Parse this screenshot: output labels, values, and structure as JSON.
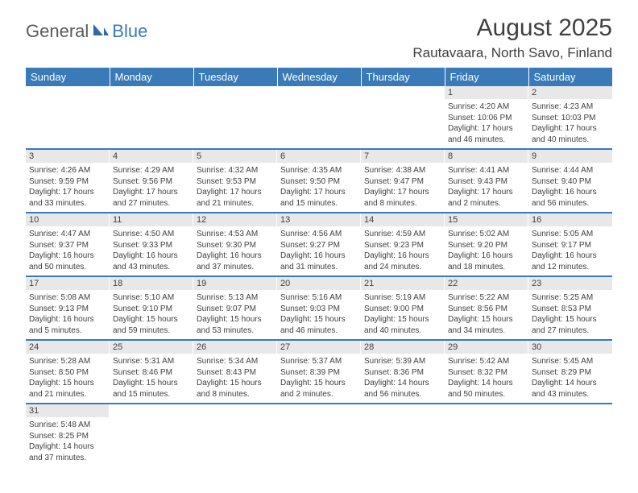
{
  "logo": {
    "text1": "General",
    "text2": "Blue",
    "color1": "#5a5a5a",
    "color2": "#3a7ab8"
  },
  "title": "August 2025",
  "location": "Rautavaara, North Savo, Finland",
  "header_bg": "#3a7ab8",
  "daynum_bg": "#e8e8e8",
  "text_color": "#404040",
  "border_color": "#3a7ab8",
  "weekdays": [
    "Sunday",
    "Monday",
    "Tuesday",
    "Wednesday",
    "Thursday",
    "Friday",
    "Saturday"
  ],
  "weeks": [
    [
      {
        "n": "",
        "sr": "",
        "ss": "",
        "dl": ""
      },
      {
        "n": "",
        "sr": "",
        "ss": "",
        "dl": ""
      },
      {
        "n": "",
        "sr": "",
        "ss": "",
        "dl": ""
      },
      {
        "n": "",
        "sr": "",
        "ss": "",
        "dl": ""
      },
      {
        "n": "",
        "sr": "",
        "ss": "",
        "dl": ""
      },
      {
        "n": "1",
        "sr": "Sunrise: 4:20 AM",
        "ss": "Sunset: 10:06 PM",
        "dl": "Daylight: 17 hours and 46 minutes."
      },
      {
        "n": "2",
        "sr": "Sunrise: 4:23 AM",
        "ss": "Sunset: 10:03 PM",
        "dl": "Daylight: 17 hours and 40 minutes."
      }
    ],
    [
      {
        "n": "3",
        "sr": "Sunrise: 4:26 AM",
        "ss": "Sunset: 9:59 PM",
        "dl": "Daylight: 17 hours and 33 minutes."
      },
      {
        "n": "4",
        "sr": "Sunrise: 4:29 AM",
        "ss": "Sunset: 9:56 PM",
        "dl": "Daylight: 17 hours and 27 minutes."
      },
      {
        "n": "5",
        "sr": "Sunrise: 4:32 AM",
        "ss": "Sunset: 9:53 PM",
        "dl": "Daylight: 17 hours and 21 minutes."
      },
      {
        "n": "6",
        "sr": "Sunrise: 4:35 AM",
        "ss": "Sunset: 9:50 PM",
        "dl": "Daylight: 17 hours and 15 minutes."
      },
      {
        "n": "7",
        "sr": "Sunrise: 4:38 AM",
        "ss": "Sunset: 9:47 PM",
        "dl": "Daylight: 17 hours and 8 minutes."
      },
      {
        "n": "8",
        "sr": "Sunrise: 4:41 AM",
        "ss": "Sunset: 9:43 PM",
        "dl": "Daylight: 17 hours and 2 minutes."
      },
      {
        "n": "9",
        "sr": "Sunrise: 4:44 AM",
        "ss": "Sunset: 9:40 PM",
        "dl": "Daylight: 16 hours and 56 minutes."
      }
    ],
    [
      {
        "n": "10",
        "sr": "Sunrise: 4:47 AM",
        "ss": "Sunset: 9:37 PM",
        "dl": "Daylight: 16 hours and 50 minutes."
      },
      {
        "n": "11",
        "sr": "Sunrise: 4:50 AM",
        "ss": "Sunset: 9:33 PM",
        "dl": "Daylight: 16 hours and 43 minutes."
      },
      {
        "n": "12",
        "sr": "Sunrise: 4:53 AM",
        "ss": "Sunset: 9:30 PM",
        "dl": "Daylight: 16 hours and 37 minutes."
      },
      {
        "n": "13",
        "sr": "Sunrise: 4:56 AM",
        "ss": "Sunset: 9:27 PM",
        "dl": "Daylight: 16 hours and 31 minutes."
      },
      {
        "n": "14",
        "sr": "Sunrise: 4:59 AM",
        "ss": "Sunset: 9:23 PM",
        "dl": "Daylight: 16 hours and 24 minutes."
      },
      {
        "n": "15",
        "sr": "Sunrise: 5:02 AM",
        "ss": "Sunset: 9:20 PM",
        "dl": "Daylight: 16 hours and 18 minutes."
      },
      {
        "n": "16",
        "sr": "Sunrise: 5:05 AM",
        "ss": "Sunset: 9:17 PM",
        "dl": "Daylight: 16 hours and 12 minutes."
      }
    ],
    [
      {
        "n": "17",
        "sr": "Sunrise: 5:08 AM",
        "ss": "Sunset: 9:13 PM",
        "dl": "Daylight: 16 hours and 5 minutes."
      },
      {
        "n": "18",
        "sr": "Sunrise: 5:10 AM",
        "ss": "Sunset: 9:10 PM",
        "dl": "Daylight: 15 hours and 59 minutes."
      },
      {
        "n": "19",
        "sr": "Sunrise: 5:13 AM",
        "ss": "Sunset: 9:07 PM",
        "dl": "Daylight: 15 hours and 53 minutes."
      },
      {
        "n": "20",
        "sr": "Sunrise: 5:16 AM",
        "ss": "Sunset: 9:03 PM",
        "dl": "Daylight: 15 hours and 46 minutes."
      },
      {
        "n": "21",
        "sr": "Sunrise: 5:19 AM",
        "ss": "Sunset: 9:00 PM",
        "dl": "Daylight: 15 hours and 40 minutes."
      },
      {
        "n": "22",
        "sr": "Sunrise: 5:22 AM",
        "ss": "Sunset: 8:56 PM",
        "dl": "Daylight: 15 hours and 34 minutes."
      },
      {
        "n": "23",
        "sr": "Sunrise: 5:25 AM",
        "ss": "Sunset: 8:53 PM",
        "dl": "Daylight: 15 hours and 27 minutes."
      }
    ],
    [
      {
        "n": "24",
        "sr": "Sunrise: 5:28 AM",
        "ss": "Sunset: 8:50 PM",
        "dl": "Daylight: 15 hours and 21 minutes."
      },
      {
        "n": "25",
        "sr": "Sunrise: 5:31 AM",
        "ss": "Sunset: 8:46 PM",
        "dl": "Daylight: 15 hours and 15 minutes."
      },
      {
        "n": "26",
        "sr": "Sunrise: 5:34 AM",
        "ss": "Sunset: 8:43 PM",
        "dl": "Daylight: 15 hours and 8 minutes."
      },
      {
        "n": "27",
        "sr": "Sunrise: 5:37 AM",
        "ss": "Sunset: 8:39 PM",
        "dl": "Daylight: 15 hours and 2 minutes."
      },
      {
        "n": "28",
        "sr": "Sunrise: 5:39 AM",
        "ss": "Sunset: 8:36 PM",
        "dl": "Daylight: 14 hours and 56 minutes."
      },
      {
        "n": "29",
        "sr": "Sunrise: 5:42 AM",
        "ss": "Sunset: 8:32 PM",
        "dl": "Daylight: 14 hours and 50 minutes."
      },
      {
        "n": "30",
        "sr": "Sunrise: 5:45 AM",
        "ss": "Sunset: 8:29 PM",
        "dl": "Daylight: 14 hours and 43 minutes."
      }
    ],
    [
      {
        "n": "31",
        "sr": "Sunrise: 5:48 AM",
        "ss": "Sunset: 8:25 PM",
        "dl": "Daylight: 14 hours and 37 minutes."
      },
      {
        "n": "",
        "sr": "",
        "ss": "",
        "dl": ""
      },
      {
        "n": "",
        "sr": "",
        "ss": "",
        "dl": ""
      },
      {
        "n": "",
        "sr": "",
        "ss": "",
        "dl": ""
      },
      {
        "n": "",
        "sr": "",
        "ss": "",
        "dl": ""
      },
      {
        "n": "",
        "sr": "",
        "ss": "",
        "dl": ""
      },
      {
        "n": "",
        "sr": "",
        "ss": "",
        "dl": ""
      }
    ]
  ]
}
